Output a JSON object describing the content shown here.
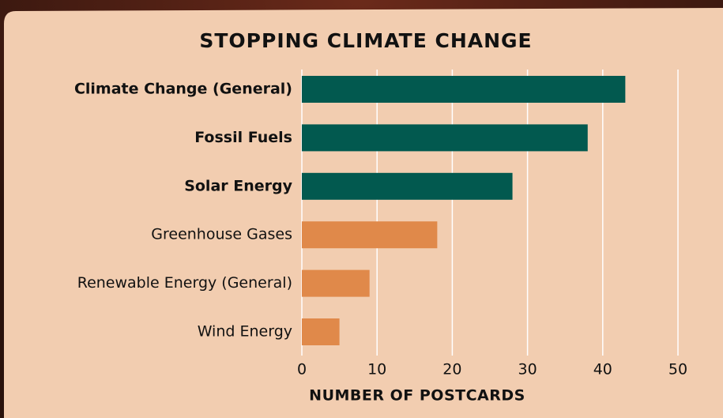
{
  "chart_data": {
    "type": "bar",
    "orientation": "horizontal",
    "title": "STOPPING CLIMATE CHANGE",
    "x_label": "NUMBER OF POSTCARDS",
    "categories": [
      "Climate Change (General)",
      "Fossil Fuels",
      "Solar Energy",
      "Greenhouse Gases",
      "Renewable Energy (General)",
      "Wind Energy"
    ],
    "values": [
      43,
      38,
      28,
      18,
      9,
      5
    ],
    "colors": [
      "#02594f",
      "#02594f",
      "#02594f",
      "#e0894a",
      "#e0894a",
      "#e0894a"
    ],
    "xlim": [
      0,
      50
    ],
    "xticks": [
      0,
      10,
      20,
      30,
      40,
      50
    ],
    "grid": true
  }
}
